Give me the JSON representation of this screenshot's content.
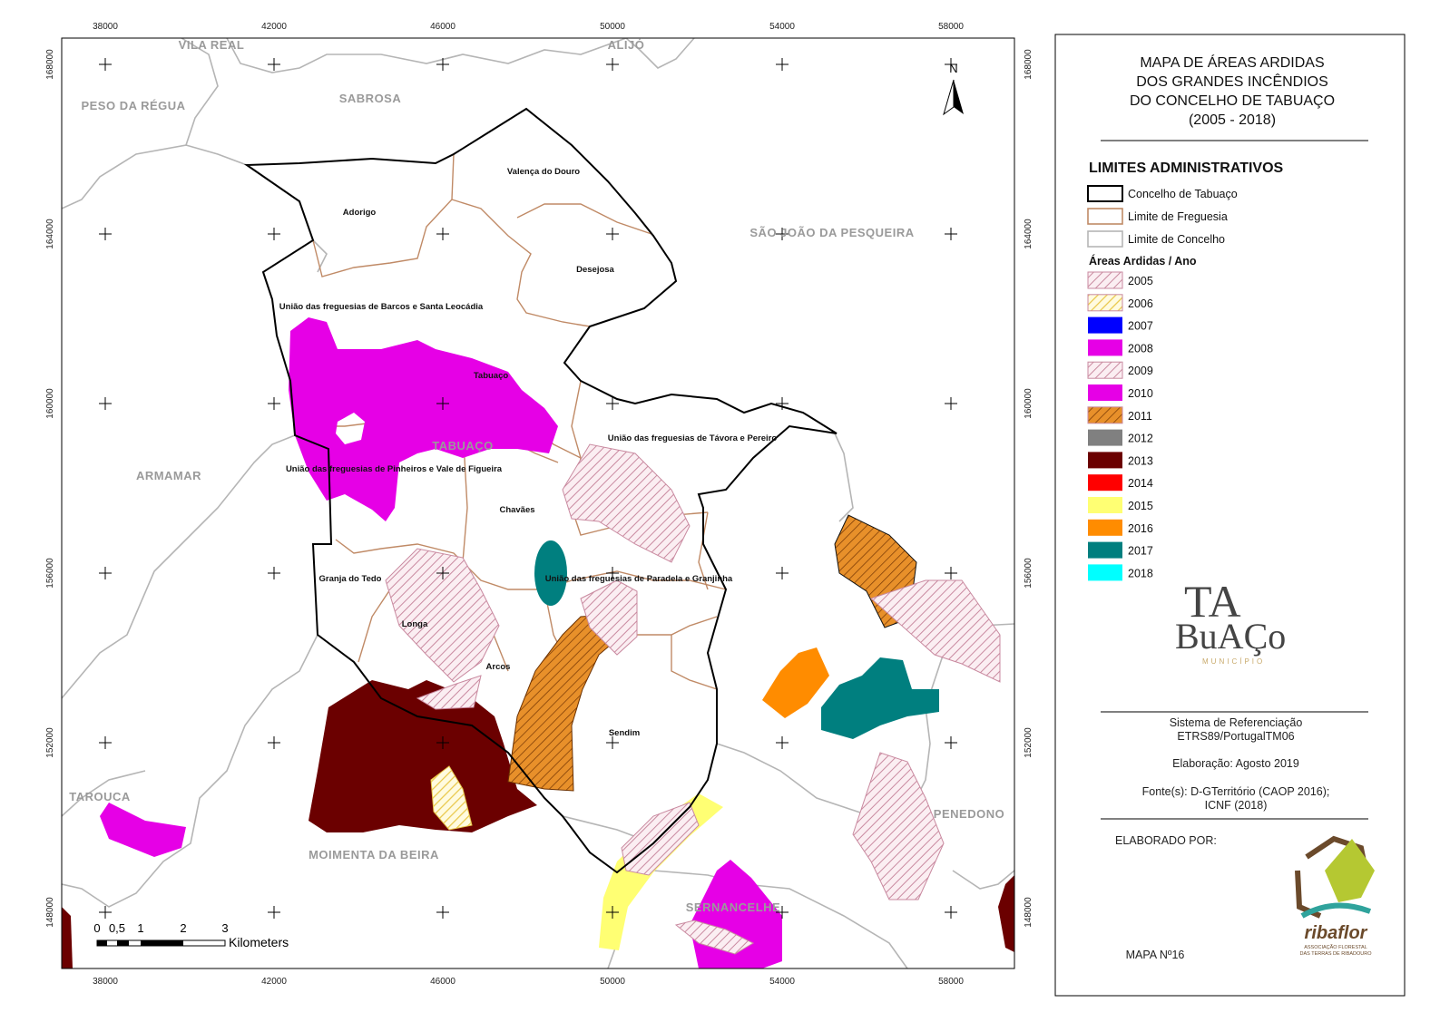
{
  "map": {
    "x_ticks": [
      "38000",
      "42000",
      "46000",
      "50000",
      "54000",
      "58000"
    ],
    "y_ticks": [
      "168000",
      "164000",
      "160000",
      "156000",
      "152000",
      "148000"
    ],
    "north": "N",
    "place_labels": [
      "VILA REAL",
      "ALIJÓ",
      "PESO DA RÉGUA",
      "SABROSA",
      "SÃO JOÃO DA PESQUEIRA",
      "ARMAMAR",
      "TABUAÇO",
      "TAROUCA",
      "MOIMENTA DA BEIRA",
      "SERNANCELHE",
      "PENEDONO"
    ],
    "parish_labels": [
      "Valença do Douro",
      "Adorigo",
      "Desejosa",
      "União das freguesias de Barcos e Santa Leocádia",
      "Tabuaço",
      "União das freguesias de Távora e Pereiro",
      "União das freguesias de Pinheiros e Vale de Figueira",
      "Chavães",
      "Granja do Tedo",
      "União das freguesias de Paradela e Granjinha",
      "Longa",
      "Arcos",
      "Sendim"
    ],
    "scale_bar": {
      "labels": [
        "0",
        "0,5",
        "1",
        "2",
        "3"
      ],
      "unit": "Kilometers"
    }
  },
  "legend": {
    "title": [
      "MAPA DE ÁREAS ARDIDAS",
      "DOS GRANDES INCÊNDIOS",
      "DO CONCELHO DE TABUAÇO",
      "(2005 - 2018)"
    ],
    "admin_heading": "LIMITES ADMINISTRATIVOS",
    "admin_items": [
      "Concelho de Tabuaço",
      "Limite de Freguesia",
      "Limite de Concelho"
    ],
    "burned_heading": "Áreas Ardidas / Ano",
    "years": [
      "2005",
      "2006",
      "2007",
      "2008",
      "2009",
      "2010",
      "2011",
      "2012",
      "2013",
      "2014",
      "2015",
      "2016",
      "2017",
      "2018"
    ],
    "municipality_logo": {
      "line1": "TA",
      "line2": "BuAÇo",
      "line3": "MUNICÍPIO"
    },
    "info": [
      "Sistema de Referenciação",
      "ETRS89/PortugalTM06",
      "Elaboração: Agosto 2019",
      "Fonte(s): D-GTerritório (CAOP 2016);",
      "ICNF (2018)"
    ],
    "made_by": "ELABORADO POR:",
    "org_logo": {
      "name": "ribaflor",
      "subtitle1": "ASSOCIAÇÃO FLORESTAL",
      "subtitle2": "DAS TERRAS DE RIBADOURO"
    },
    "map_number": "MAPA Nº16"
  }
}
